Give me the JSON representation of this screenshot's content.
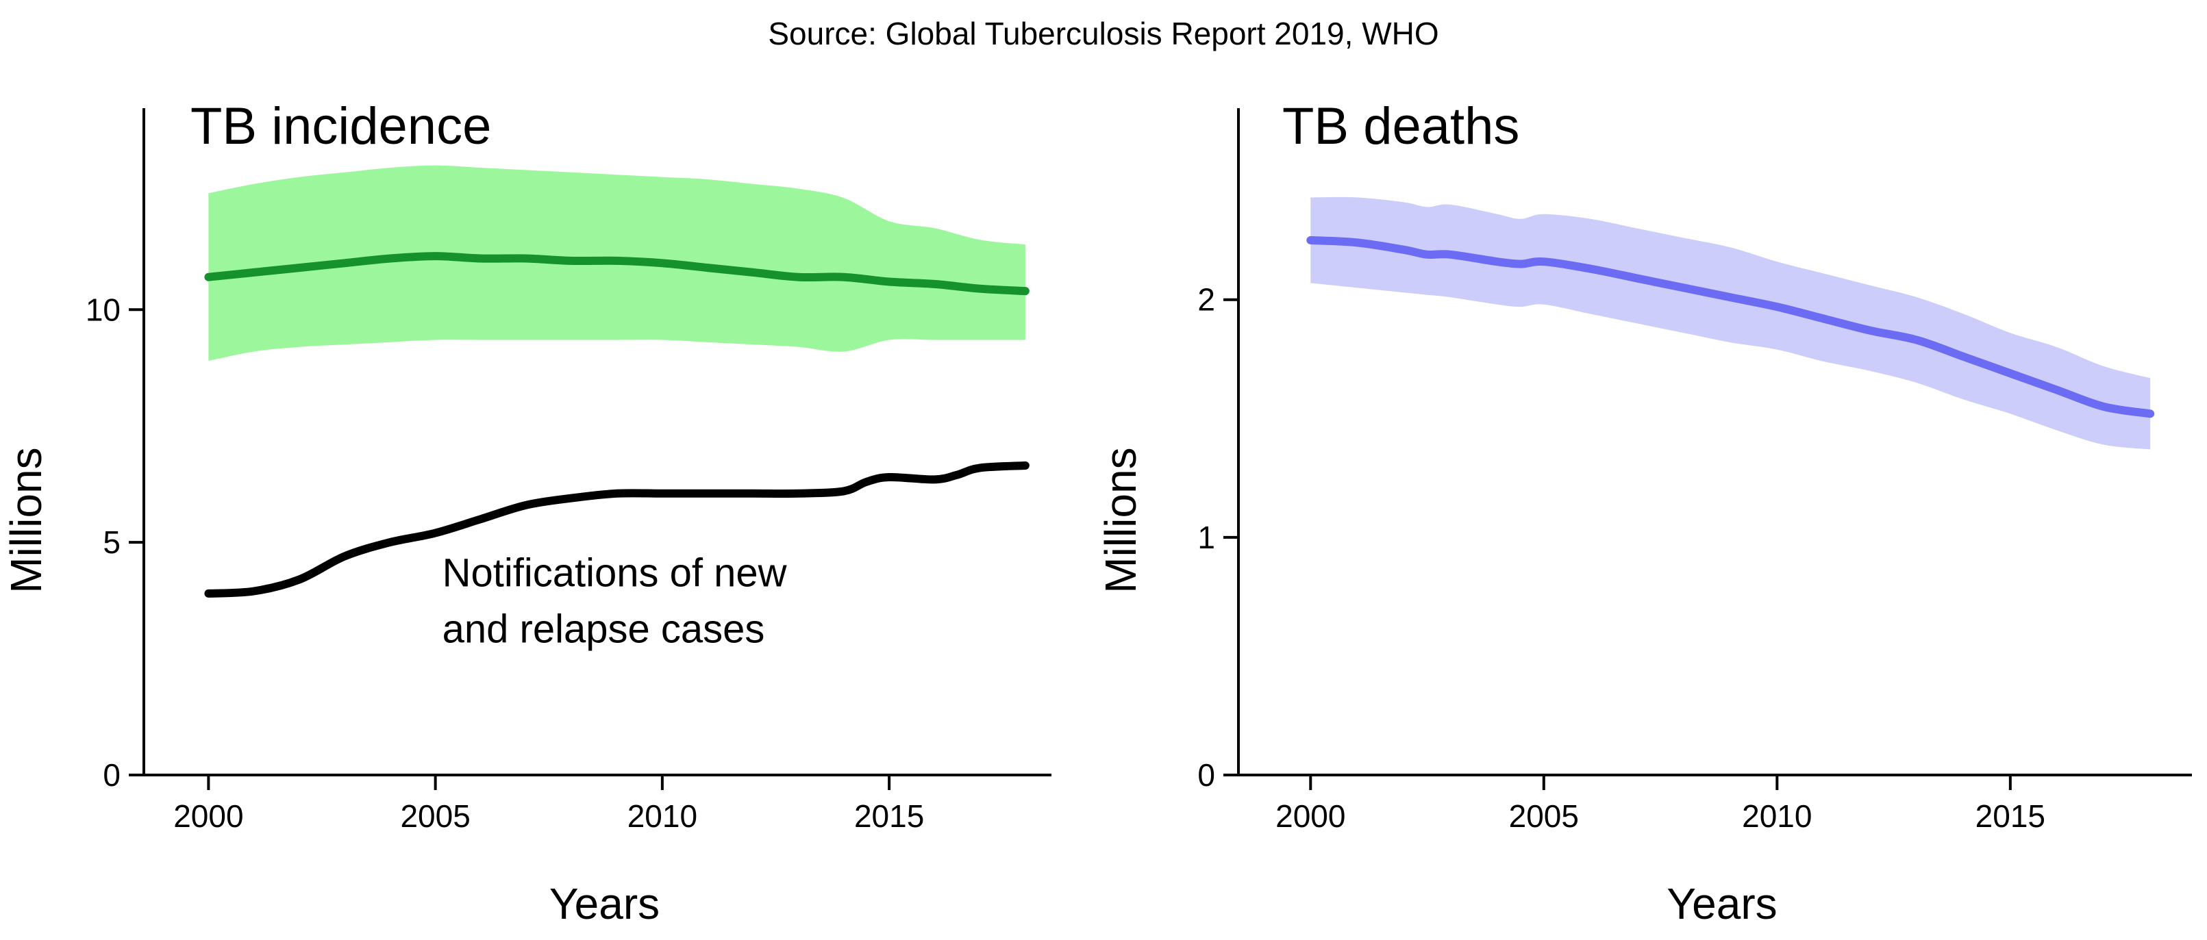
{
  "source_note": "Source: Global Tuberculosis Report 2019, WHO",
  "colors": {
    "incidence_line": "#16922c",
    "incidence_band": "#9cf79c",
    "notifications_line": "#000000",
    "deaths_line": "#6b6bf3",
    "deaths_band": "#cccdfa",
    "axis": "#000000"
  },
  "chart_data": [
    {
      "type": "line",
      "title": "TB incidence",
      "xlabel": "Years",
      "ylabel": "Millions",
      "xlim": [
        1999.3,
        2018.5
      ],
      "ylim": [
        0,
        14.3
      ],
      "x_ticks": [
        2000,
        2005,
        2010,
        2015
      ],
      "y_ticks": [
        0,
        5,
        10
      ],
      "grid": false,
      "legend": "none",
      "series": [
        {
          "key": "incidence",
          "x": [
            2000,
            2001,
            2002,
            2003,
            2004,
            2005,
            2006,
            2007,
            2008,
            2009,
            2010,
            2011,
            2012,
            2013,
            2014,
            2015,
            2016,
            2017,
            2018
          ],
          "y": [
            10.7,
            10.8,
            10.9,
            11.0,
            11.1,
            11.15,
            11.1,
            11.1,
            11.05,
            11.05,
            11.0,
            10.9,
            10.8,
            10.7,
            10.7,
            10.6,
            10.55,
            10.45,
            10.4
          ],
          "lower": [
            8.9,
            9.1,
            9.2,
            9.25,
            9.3,
            9.35,
            9.35,
            9.35,
            9.35,
            9.35,
            9.35,
            9.3,
            9.25,
            9.2,
            9.1,
            9.35,
            9.35,
            9.35,
            9.35
          ],
          "upper": [
            12.5,
            12.7,
            12.85,
            12.95,
            13.05,
            13.1,
            13.05,
            13.0,
            12.95,
            12.9,
            12.85,
            12.8,
            12.7,
            12.6,
            12.4,
            11.9,
            11.75,
            11.5,
            11.4
          ]
        },
        {
          "key": "notifications",
          "x": [
            2000,
            2001,
            2002,
            2003,
            2004,
            2005,
            2006,
            2007,
            2008,
            2009,
            2010,
            2011,
            2012,
            2013,
            2014,
            2014.5,
            2015,
            2016,
            2016.5,
            2017,
            2018
          ],
          "y": [
            3.9,
            3.95,
            4.2,
            4.7,
            5.0,
            5.2,
            5.5,
            5.8,
            5.95,
            6.05,
            6.05,
            6.05,
            6.05,
            6.05,
            6.1,
            6.3,
            6.4,
            6.35,
            6.45,
            6.6,
            6.65
          ]
        }
      ],
      "annotations": [
        {
          "key": "notifications-label",
          "lines": [
            "Notifications of new",
            "and relapse cases"
          ],
          "x": 2005,
          "y": 4.05
        }
      ]
    },
    {
      "type": "line",
      "title": "TB deaths",
      "xlabel": "Years",
      "ylabel": "Millions",
      "xlim": [
        1999.1,
        2018.6
      ],
      "ylim": [
        0,
        2.8
      ],
      "x_ticks": [
        2000,
        2005,
        2010,
        2015
      ],
      "y_ticks": [
        0,
        1,
        2
      ],
      "grid": false,
      "legend": "none",
      "series": [
        {
          "key": "deaths",
          "x": [
            2000,
            2001,
            2002,
            2002.5,
            2003,
            2004,
            2004.5,
            2005,
            2006,
            2007,
            2008,
            2009,
            2010,
            2011,
            2012,
            2013,
            2014,
            2015,
            2016,
            2017,
            2018
          ],
          "y": [
            2.25,
            2.24,
            2.21,
            2.19,
            2.19,
            2.16,
            2.15,
            2.16,
            2.13,
            2.09,
            2.05,
            2.01,
            1.97,
            1.92,
            1.87,
            1.83,
            1.76,
            1.69,
            1.62,
            1.55,
            1.52
          ],
          "lower": [
            2.07,
            2.05,
            2.03,
            2.02,
            2.01,
            1.98,
            1.97,
            1.98,
            1.94,
            1.9,
            1.86,
            1.82,
            1.79,
            1.74,
            1.7,
            1.65,
            1.58,
            1.52,
            1.45,
            1.39,
            1.37
          ],
          "upper": [
            2.43,
            2.43,
            2.41,
            2.39,
            2.4,
            2.36,
            2.34,
            2.36,
            2.34,
            2.3,
            2.26,
            2.22,
            2.16,
            2.11,
            2.06,
            2.01,
            1.94,
            1.86,
            1.8,
            1.72,
            1.67
          ]
        }
      ]
    }
  ]
}
